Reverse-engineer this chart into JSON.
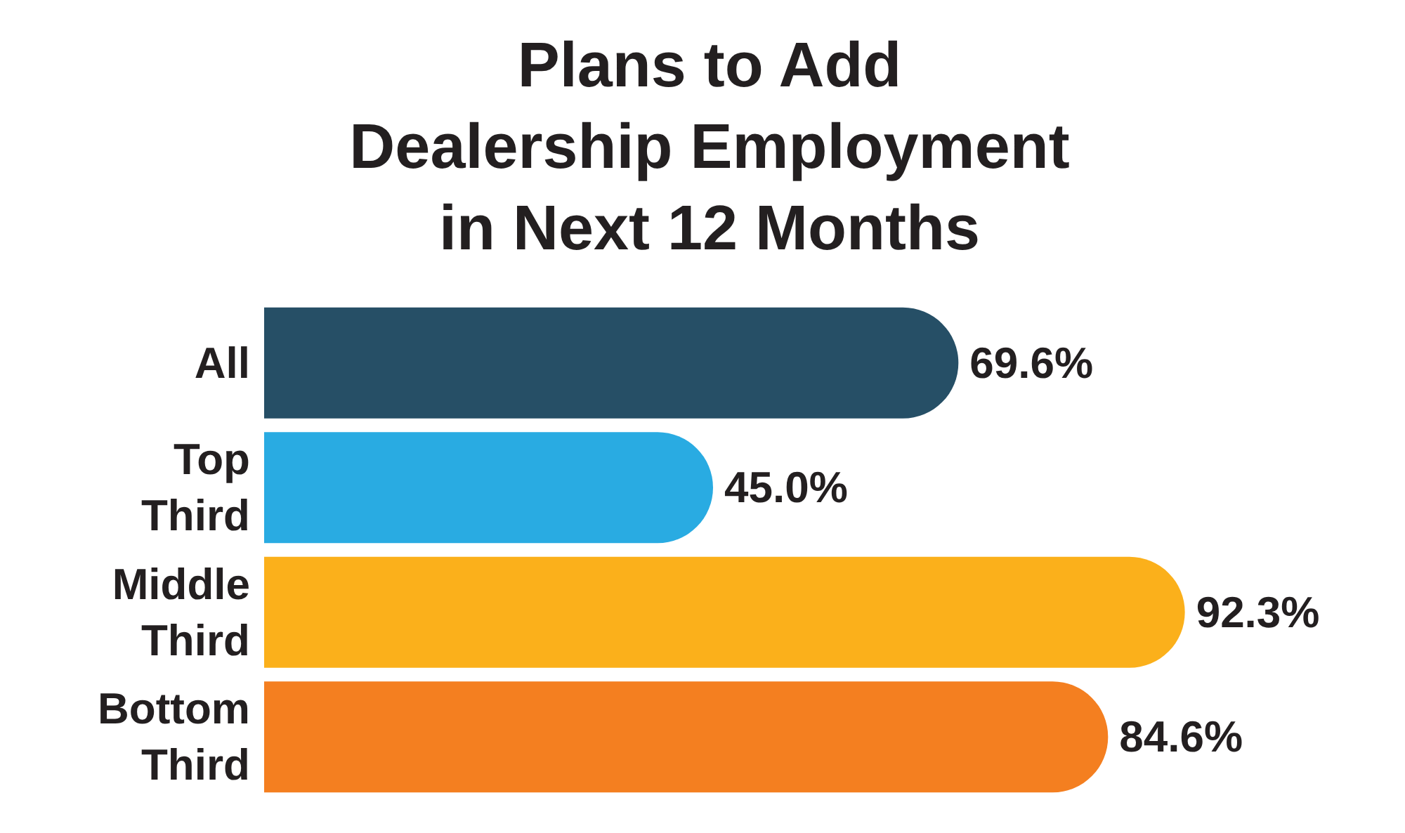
{
  "chart_data": {
    "type": "bar",
    "orientation": "horizontal",
    "title": "Plans to Add Dealership Employment in Next 12 Months",
    "categories": [
      "All",
      "Top Third",
      "Middle Third",
      "Bottom Third"
    ],
    "values": [
      69.6,
      45.0,
      92.3,
      84.6
    ],
    "colors": [
      "#264f66",
      "#29abe2",
      "#fbb01b",
      "#f47f20"
    ],
    "value_labels": [
      "69.6%",
      "45.0%",
      "92.3%",
      "84.6%"
    ],
    "grid": false
  }
}
